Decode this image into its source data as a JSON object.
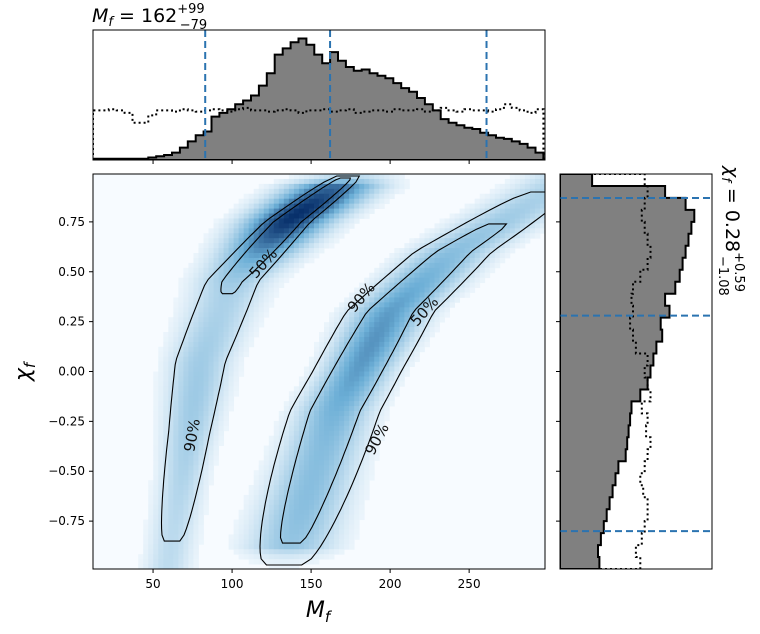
{
  "chart_data": [
    {
      "type": "heatmap",
      "panel": "joint",
      "xlabel_main": "M",
      "xlabel_sub": "f",
      "ylabel_main": "χ",
      "ylabel_sub": "f",
      "xlim": [
        12,
        298
      ],
      "ylim": [
        -0.99,
        0.99
      ],
      "xticks": [
        50,
        100,
        150,
        200,
        250
      ],
      "yticks": [
        -0.75,
        -0.5,
        -0.25,
        0.0,
        0.25,
        0.5,
        0.75
      ],
      "ytick_labels": [
        "−0.75",
        "−0.50",
        "−0.25",
        "0.00",
        "0.25",
        "0.50",
        "0.75"
      ],
      "colormap": "Blues",
      "modes": [
        {
          "name": "upper",
          "spine": [
            [
              62,
              -0.85
            ],
            [
              80,
              0.05
            ],
            [
              100,
              0.45
            ],
            [
              135,
              0.75
            ],
            [
              160,
              0.9
            ]
          ],
          "peak": [
            135,
            0.79
          ]
        },
        {
          "name": "lower",
          "spine": [
            [
              135,
              -0.92
            ],
            [
              165,
              -0.2
            ],
            [
              200,
              0.3
            ],
            [
              240,
              0.6
            ],
            [
              280,
              0.8
            ]
          ],
          "peak": [
            170,
            0.1
          ]
        }
      ],
      "contours": [
        {
          "level_label": "50%",
          "labels": [
            "50%",
            "50%"
          ]
        },
        {
          "level_label": "90%",
          "labels": [
            "90%",
            "90%",
            "90%"
          ]
        }
      ]
    },
    {
      "type": "histogram",
      "panel": "top-marginal",
      "title_main": "M",
      "title_sub": "f",
      "title_value": " = 162",
      "title_sup": "+99",
      "title_subscr": "−79",
      "quantiles": [
        83,
        162,
        261
      ],
      "bins": [
        12,
        17,
        22,
        27,
        32,
        37,
        42,
        47,
        52,
        57,
        62,
        67,
        72,
        77,
        82,
        87,
        92,
        97,
        102,
        107,
        112,
        117,
        122,
        127,
        132,
        137,
        142,
        147,
        152,
        157,
        162,
        167,
        172,
        177,
        182,
        187,
        192,
        197,
        202,
        207,
        212,
        217,
        222,
        227,
        232,
        237,
        242,
        247,
        252,
        257,
        262,
        267,
        272,
        277,
        282,
        287,
        292,
        297
      ],
      "posterior": [
        0.01,
        0.01,
        0.01,
        0.01,
        0.01,
        0.01,
        0.01,
        0.02,
        0.03,
        0.04,
        0.06,
        0.1,
        0.15,
        0.2,
        0.23,
        0.35,
        0.38,
        0.41,
        0.45,
        0.48,
        0.52,
        0.6,
        0.7,
        0.85,
        0.9,
        0.95,
        0.98,
        0.93,
        0.85,
        0.78,
        0.87,
        0.8,
        0.75,
        0.72,
        0.73,
        0.7,
        0.68,
        0.66,
        0.62,
        0.58,
        0.55,
        0.5,
        0.45,
        0.4,
        0.33,
        0.3,
        0.28,
        0.26,
        0.25,
        0.22,
        0.2,
        0.18,
        0.17,
        0.15,
        0.13,
        0.1,
        0.06
      ],
      "prior": [
        0.4,
        0.4,
        0.41,
        0.4,
        0.38,
        0.3,
        0.3,
        0.36,
        0.4,
        0.4,
        0.39,
        0.41,
        0.4,
        0.39,
        0.4,
        0.41,
        0.4,
        0.39,
        0.41,
        0.42,
        0.4,
        0.4,
        0.39,
        0.4,
        0.41,
        0.4,
        0.38,
        0.4,
        0.4,
        0.41,
        0.39,
        0.4,
        0.41,
        0.38,
        0.39,
        0.4,
        0.4,
        0.39,
        0.41,
        0.4,
        0.4,
        0.41,
        0.39,
        0.4,
        0.42,
        0.4,
        0.39,
        0.41,
        0.4,
        0.4,
        0.39,
        0.41,
        0.45,
        0.42,
        0.4,
        0.38,
        0.41
      ]
    },
    {
      "type": "histogram",
      "panel": "right-marginal",
      "title_main": "χ",
      "title_sub": "f",
      "title_value": " = 0.28",
      "title_sup": "+0.59",
      "title_subscr": "−1.08",
      "quantiles": [
        -0.8,
        0.28,
        0.87
      ],
      "bins": [
        -0.99,
        -0.93,
        -0.87,
        -0.81,
        -0.75,
        -0.69,
        -0.63,
        -0.57,
        -0.51,
        -0.45,
        -0.39,
        -0.33,
        -0.27,
        -0.21,
        -0.15,
        -0.09,
        -0.03,
        0.03,
        0.09,
        0.15,
        0.21,
        0.27,
        0.33,
        0.39,
        0.45,
        0.51,
        0.57,
        0.63,
        0.69,
        0.75,
        0.81,
        0.87,
        0.93,
        0.99
      ],
      "posterior": [
        0.27,
        0.26,
        0.28,
        0.3,
        0.32,
        0.34,
        0.36,
        0.38,
        0.4,
        0.45,
        0.46,
        0.47,
        0.48,
        0.49,
        0.55,
        0.6,
        0.62,
        0.64,
        0.66,
        0.7,
        0.69,
        0.75,
        0.72,
        0.79,
        0.82,
        0.84,
        0.86,
        0.88,
        0.9,
        0.92,
        0.86,
        0.72,
        0.22
      ],
      "prior": [
        0.55,
        0.52,
        0.56,
        0.58,
        0.6,
        0.6,
        0.57,
        0.55,
        0.58,
        0.6,
        0.62,
        0.59,
        0.6,
        0.56,
        0.62,
        0.6,
        0.58,
        0.6,
        0.52,
        0.5,
        0.48,
        0.5,
        0.49,
        0.5,
        0.55,
        0.6,
        0.62,
        0.6,
        0.58,
        0.56,
        0.58,
        0.6,
        0.58
      ]
    }
  ],
  "colors": {
    "hist_fill": "#808080",
    "quantile_line": "#2b73b0",
    "contour": "#000000",
    "prior_line": "#000000",
    "heat_low": "#f7fbff",
    "heat_high": "#08306b"
  }
}
